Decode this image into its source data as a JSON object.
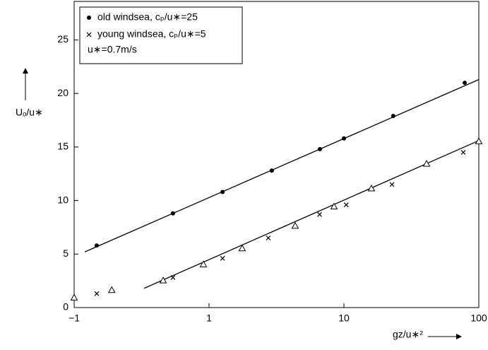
{
  "chart_data": {
    "type": "scatter",
    "xlabel": "gz/u∗²",
    "ylabel": "Uₒ/u∗",
    "log_x": true,
    "xlim": [
      0.1,
      100
    ],
    "xticks": [
      {
        "value": 0.1,
        "label": "−1"
      },
      1,
      10,
      100
    ],
    "ylim": [
      0,
      28.6
    ],
    "yticks": [
      0,
      5,
      10,
      15,
      20,
      25
    ],
    "legend_note": "u∗=0.7m/s",
    "series": [
      {
        "name": "old windsea, cₚ/u∗=25",
        "marker": "circle",
        "color": "#000000",
        "x": [
          0.147,
          0.54,
          1.26,
          2.92,
          6.64,
          10,
          23.2,
          78.6
        ],
        "values": [
          5.8,
          8.8,
          10.8,
          12.8,
          14.8,
          15.8,
          17.9,
          21.0
        ]
      },
      {
        "name": "young windsea, cₚ/u∗=5",
        "marker": "x",
        "color": "#000000",
        "x": [
          0.147,
          0.54,
          1.26,
          2.75,
          6.6,
          10.4,
          22.7,
          76.7
        ],
        "values": [
          1.3,
          2.8,
          4.6,
          6.5,
          8.7,
          9.6,
          11.5,
          14.5
        ]
      },
      {
        "marker": "triangle",
        "color": "#000000",
        "x": [
          0.1,
          0.19,
          0.457,
          0.908,
          1.76,
          4.35,
          8.45,
          16.0,
          41,
          100
        ],
        "values": [
          0.9,
          1.6,
          2.5,
          4.0,
          5.5,
          7.6,
          9.4,
          11.1,
          13.4,
          15.5
        ]
      }
    ],
    "fit_lines": [
      {
        "x": [
          0.12,
          100
        ],
        "values": [
          5.2,
          21.3
        ]
      },
      {
        "x": [
          0.33,
          100
        ],
        "values": [
          1.8,
          15.6
        ]
      }
    ]
  }
}
